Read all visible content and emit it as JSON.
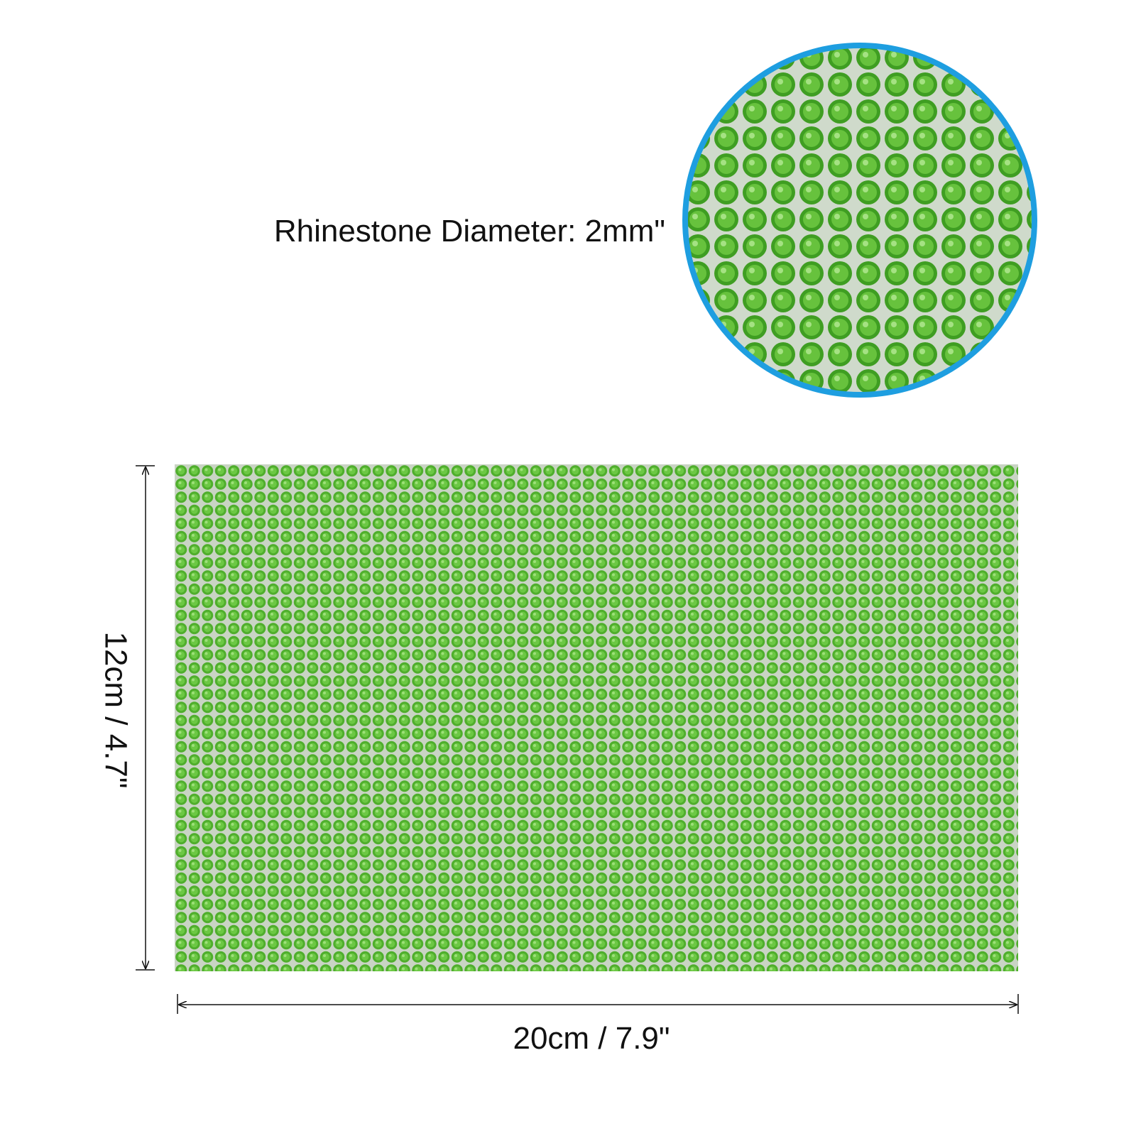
{
  "callout": {
    "label": "Rhinestone Diameter: 2mm\""
  },
  "dimensions": {
    "height": "12cm / 4.7\"",
    "width": "20cm / 7.9\""
  }
}
